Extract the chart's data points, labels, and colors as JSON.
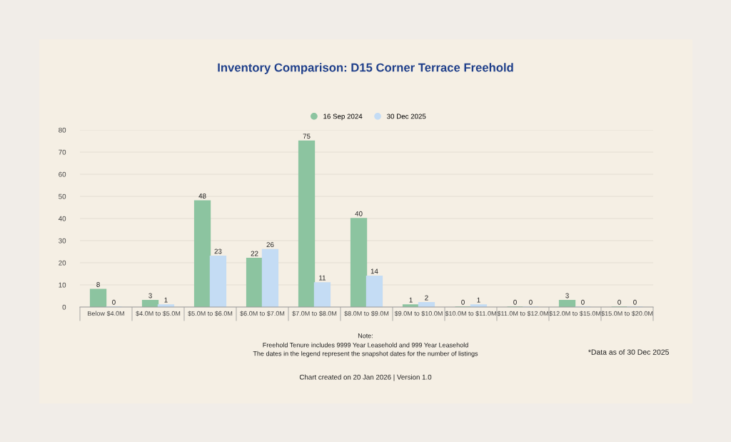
{
  "chart_data": {
    "type": "bar",
    "title": "Inventory Comparison: D15 Corner Terrace Freehold",
    "categories": [
      "Below $4.0M",
      "$4.0M to $5.0M",
      "$5.0M to $6.0M",
      "$6.0M to $7.0M",
      "$7.0M to $8.0M",
      "$8.0M to $9.0M",
      "$9.0M to $10.0M",
      "$10.0M to $11.0M",
      "$11.0M to $12.0M",
      "$12.0M to $15.0M",
      "$15.0M to $20.0M"
    ],
    "series": [
      {
        "name": "16 Sep 2024",
        "color": "#8cc4a0",
        "values": [
          8,
          3,
          48,
          22,
          75,
          40,
          1,
          0,
          0,
          3,
          0
        ]
      },
      {
        "name": "30 Dec 2025",
        "color": "#c4dcf4",
        "values": [
          0,
          1,
          23,
          26,
          11,
          14,
          2,
          1,
          0,
          0,
          0
        ]
      }
    ],
    "ylim": [
      0,
      80
    ],
    "yticks": [
      0,
      10,
      20,
      30,
      40,
      50,
      60,
      70,
      80
    ],
    "grid": "y",
    "legend": "top",
    "data_labels": true,
    "annotations": [
      "Note:",
      "Freehold Tenure includes 9999 Year Leasehold and 999 Year Leasehold",
      "The dates in the legend represent the snapshot dates for the number of listings",
      "*Data as of 30 Dec 2025",
      "Chart created on 20 Jan 2026 | Version 1.0"
    ]
  }
}
